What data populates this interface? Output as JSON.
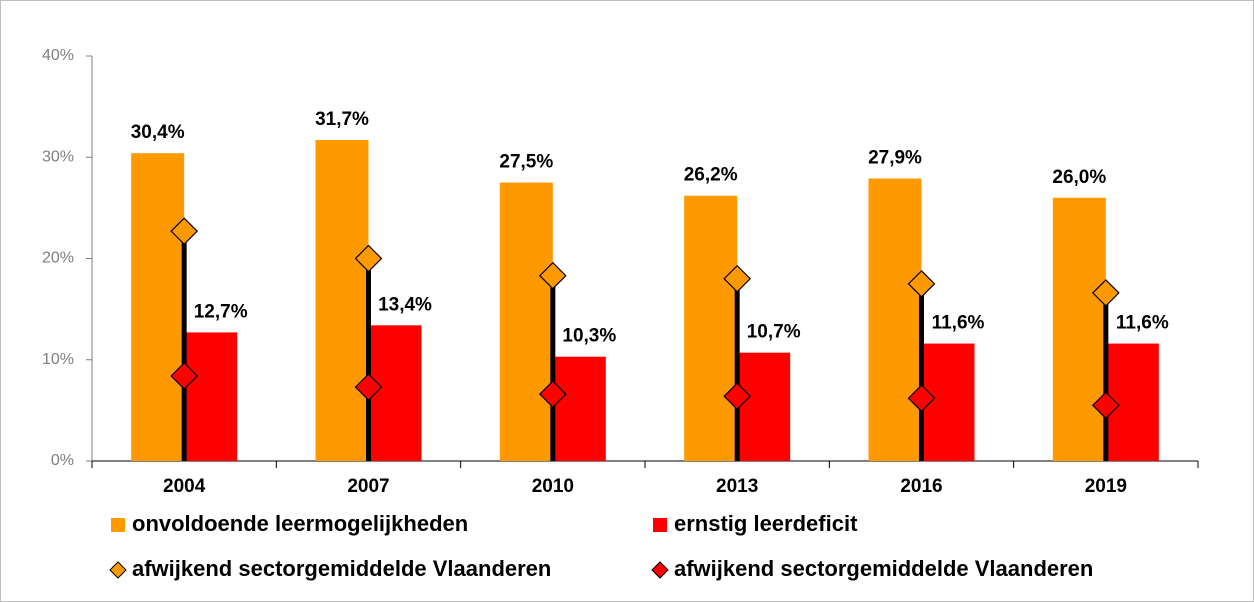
{
  "chart_data": {
    "type": "bar",
    "categories": [
      "2004",
      "2007",
      "2010",
      "2013",
      "2016",
      "2019"
    ],
    "series": [
      {
        "name": "onvoldoende leermogelijkheden",
        "type": "bar",
        "color": "#ff9900",
        "values": [
          30.4,
          31.7,
          27.5,
          26.2,
          27.9,
          26.0
        ],
        "value_labels": [
          "30,4%",
          "31,7%",
          "27,5%",
          "26,2%",
          "27,9%",
          "26,0%"
        ]
      },
      {
        "name": "ernstig leerdeficit",
        "type": "bar",
        "color": "#ff0000",
        "values": [
          12.7,
          13.4,
          10.3,
          10.7,
          11.6,
          11.6
        ],
        "value_labels": [
          "12,7%",
          "13,4%",
          "10,3%",
          "10,7%",
          "11,6%",
          "11,6%"
        ]
      },
      {
        "name": "afwijkend sectorgemiddelde Vlaanderen",
        "type": "marker",
        "color": "#ff9900",
        "values": [
          22.7,
          20.0,
          18.3,
          18.0,
          17.5,
          16.6
        ]
      },
      {
        "name": "afwijkend sectorgemiddelde Vlaanderen",
        "type": "marker",
        "color": "#ff0000",
        "values": [
          8.4,
          7.3,
          6.6,
          6.4,
          6.2,
          5.5
        ]
      }
    ],
    "ylim": [
      0,
      40
    ],
    "yticks": [
      {
        "value": 0,
        "label": "0%"
      },
      {
        "value": 10,
        "label": "10%"
      },
      {
        "value": 20,
        "label": "20%"
      },
      {
        "value": 30,
        "label": "30%"
      },
      {
        "value": 40,
        "label": "40%"
      }
    ]
  }
}
